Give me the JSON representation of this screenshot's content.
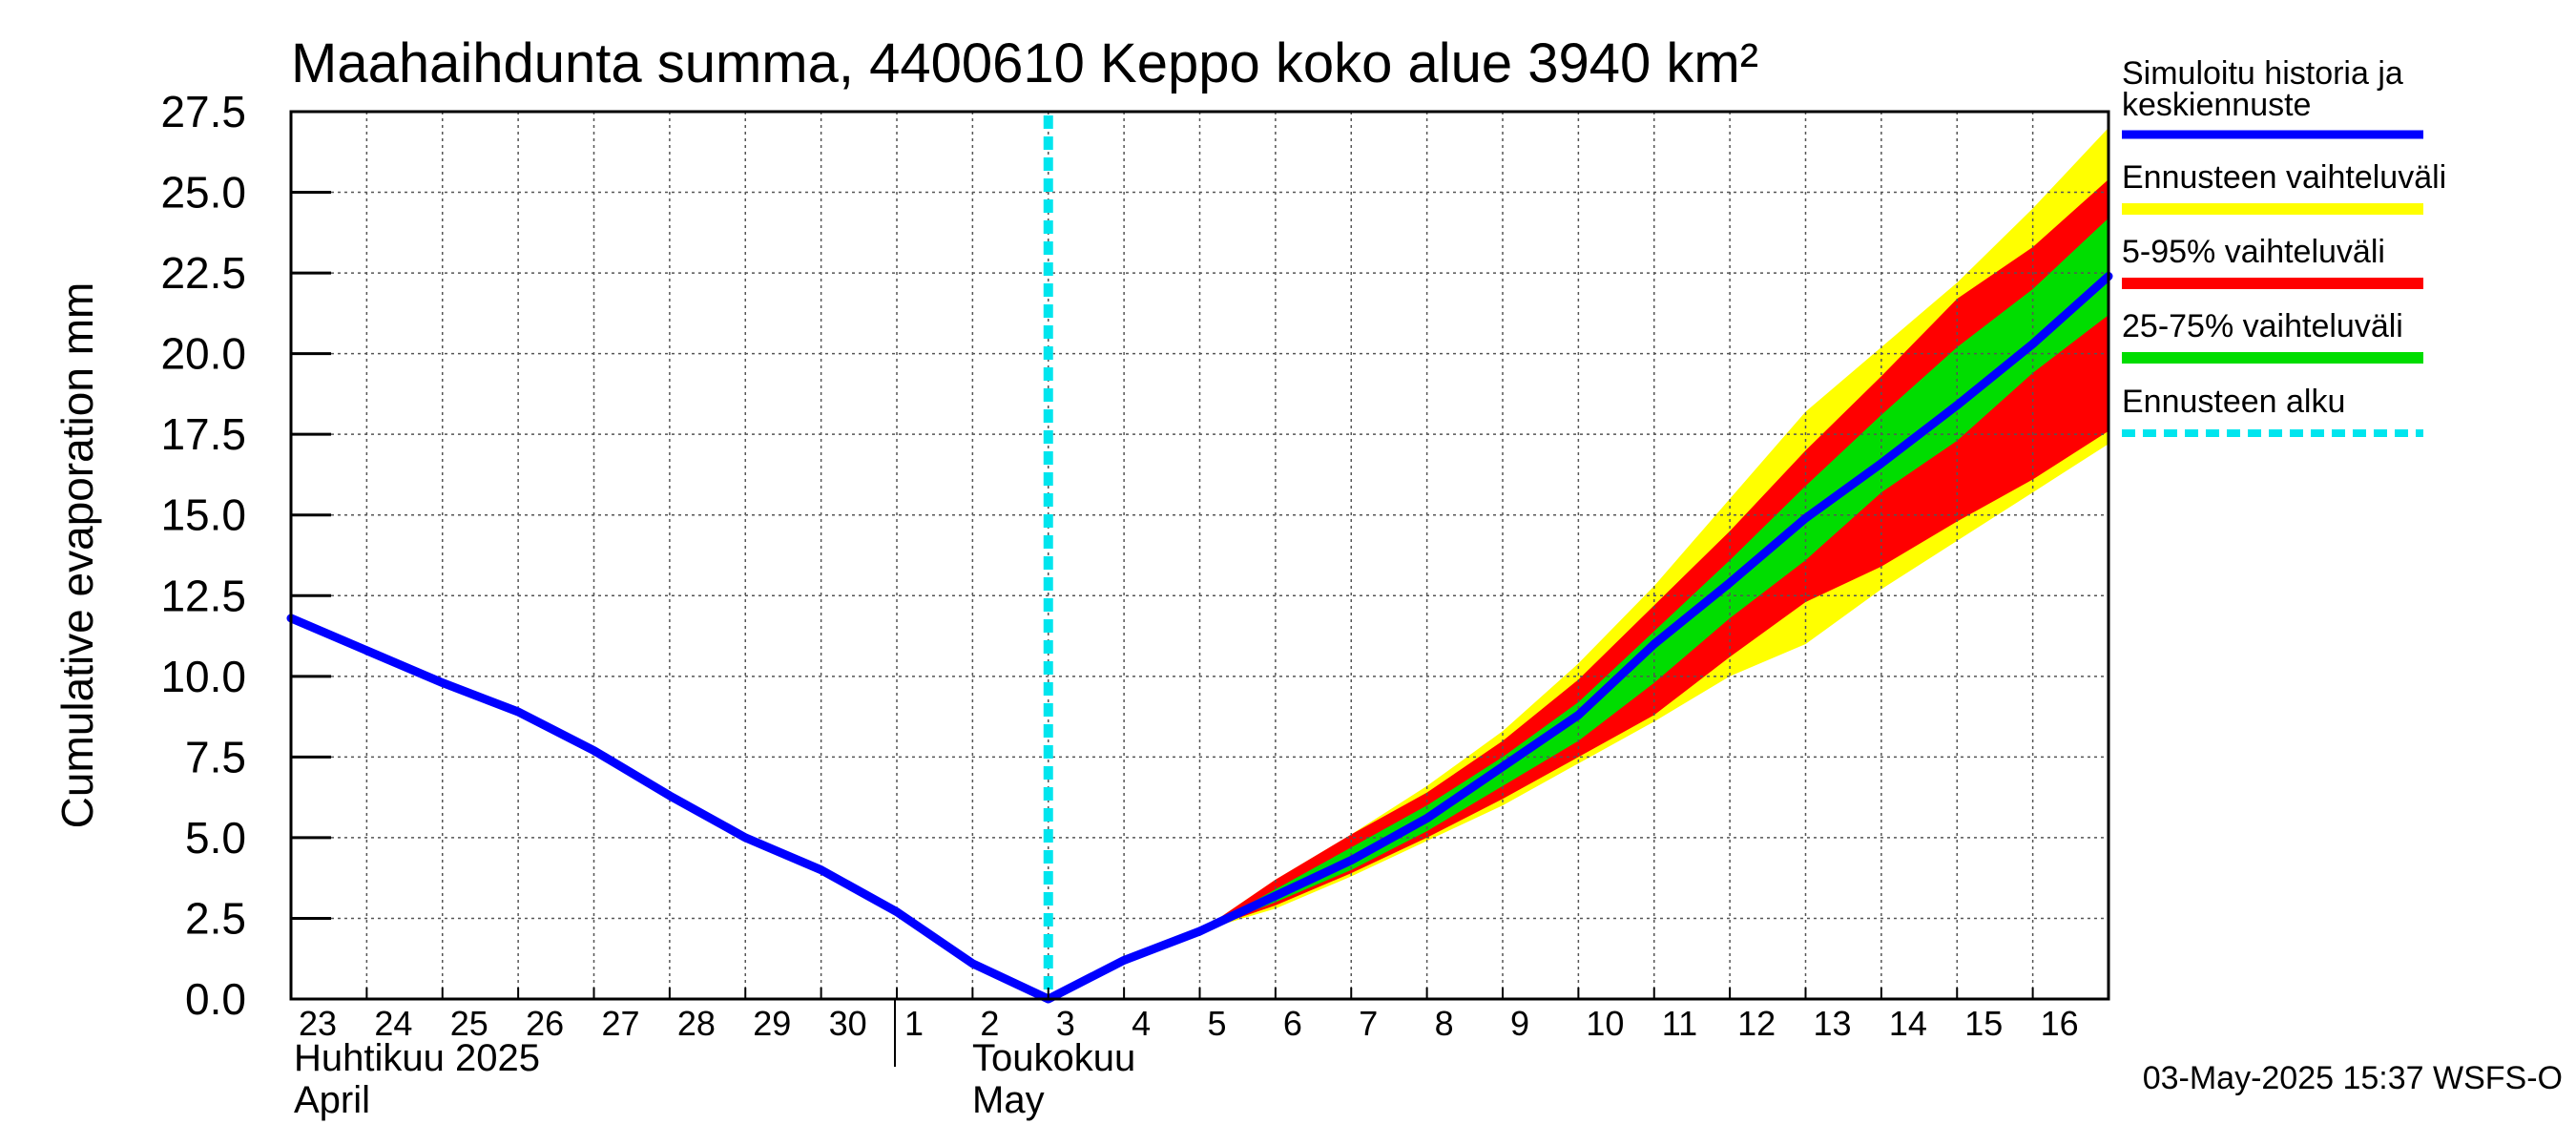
{
  "chart_data": {
    "type": "area",
    "title": "Maahaihdunta summa, 4400610 Keppo koko alue 3940 km²",
    "ylabel": "Cumulative evaporation   mm",
    "ylim": [
      0,
      27.5
    ],
    "y_ticks": [
      "0.0",
      "2.5",
      "5.0",
      "7.5",
      "10.0",
      "12.5",
      "15.0",
      "17.5",
      "20.0",
      "22.5",
      "25.0",
      "27.5"
    ],
    "x_tick_labels": [
      "23",
      "24",
      "25",
      "26",
      "27",
      "28",
      "29",
      "30",
      "1",
      "2",
      "3",
      "4",
      "5",
      "6",
      "7",
      "8",
      "9",
      "10",
      "11",
      "12",
      "13",
      "14",
      "15",
      "16"
    ],
    "xlim": [
      0,
      24
    ],
    "month_labels": {
      "april_fi": "Huhtikuu  2025",
      "april_en": "April",
      "may_fi": "Toukokuu",
      "may_en": "May"
    },
    "forecast_start_x": 10,
    "x": [
      0,
      1,
      2,
      3,
      4,
      5,
      6,
      7,
      8,
      9,
      10,
      11,
      12,
      13,
      14,
      15,
      16,
      17,
      18,
      19,
      20,
      21,
      22,
      23,
      24
    ],
    "series": [
      {
        "name": "Simuloitu historia ja keskiennuste",
        "color": "#0000ff",
        "x": [
          0,
          1,
          2,
          3,
          4,
          5,
          6,
          7,
          8,
          9,
          10,
          11,
          12,
          13,
          14,
          15,
          16,
          17,
          18,
          19,
          20,
          21,
          22,
          23,
          24
        ],
        "values": [
          11.8,
          10.8,
          9.8,
          8.9,
          7.7,
          6.3,
          5.0,
          4.0,
          2.7,
          1.1,
          0.0,
          1.2,
          2.1,
          3.2,
          4.3,
          5.6,
          7.2,
          8.8,
          11.0,
          12.9,
          14.9,
          16.6,
          18.4,
          20.3,
          22.4
        ]
      }
    ],
    "bands": [
      {
        "name": "Ennusteen vaihteluväli",
        "color": "#ffff00",
        "x": [
          12,
          13,
          14,
          15,
          16,
          17,
          18,
          19,
          20,
          21,
          22,
          23,
          24
        ],
        "upper": [
          2.1,
          3.7,
          5.1,
          6.6,
          8.3,
          10.4,
          12.8,
          15.5,
          18.2,
          20.2,
          22.2,
          24.5,
          27.0
        ],
        "lower": [
          2.1,
          2.8,
          3.8,
          4.9,
          6.0,
          7.3,
          8.6,
          10.0,
          11.0,
          12.7,
          14.2,
          15.7,
          17.2
        ]
      },
      {
        "name": "5-95% vaihteluväli",
        "color": "#ff0000",
        "x": [
          12,
          13,
          14,
          15,
          16,
          17,
          18,
          19,
          20,
          21,
          22,
          23,
          24
        ],
        "upper": [
          2.1,
          3.7,
          5.1,
          6.4,
          8.0,
          9.9,
          12.2,
          14.5,
          17.0,
          19.3,
          21.7,
          23.3,
          25.4
        ],
        "lower": [
          2.1,
          2.9,
          3.9,
          5.0,
          6.2,
          7.5,
          8.8,
          10.6,
          12.3,
          13.4,
          14.8,
          16.1,
          17.6
        ]
      },
      {
        "name": "25-75% vaihteluväli",
        "color": "#00dd00",
        "x": [
          12,
          13,
          14,
          15,
          16,
          17,
          18,
          19,
          20,
          21,
          22,
          23,
          24
        ],
        "upper": [
          2.1,
          3.4,
          4.7,
          6.0,
          7.5,
          9.2,
          11.4,
          13.6,
          15.9,
          18.1,
          20.2,
          22.0,
          24.2
        ],
        "lower": [
          2.1,
          3.0,
          4.0,
          5.2,
          6.6,
          8.0,
          9.8,
          11.8,
          13.6,
          15.7,
          17.3,
          19.4,
          21.2
        ]
      }
    ],
    "legend": {
      "items": [
        {
          "label": "Simuloitu historia ja keskiennuste",
          "color": "#0000ff",
          "style": "solid"
        },
        {
          "label": "Ennusteen vaihteluväli",
          "color": "#ffff00",
          "style": "solid"
        },
        {
          "label": "5-95% vaihteluväli",
          "color": "#ff0000",
          "style": "solid"
        },
        {
          "label": "25-75% vaihteluväli",
          "color": "#00dd00",
          "style": "solid"
        },
        {
          "label": "Ennusteen alku",
          "color": "#00e5ee",
          "style": "dashed"
        }
      ],
      "placement": "right"
    },
    "grid": true,
    "footer": "03-May-2025 15:37 WSFS-O"
  }
}
